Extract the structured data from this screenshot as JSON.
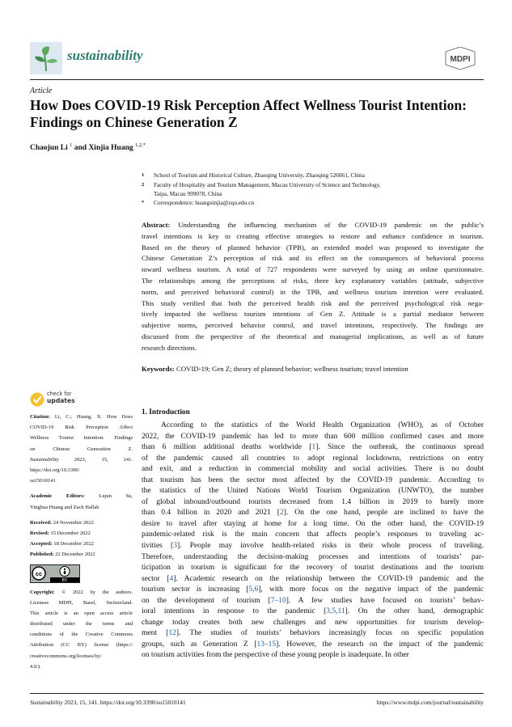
{
  "header": {
    "journal": "sustainability",
    "logo_icon": "sprout-leaf-icon",
    "publisher": "MDPI",
    "publisher_logo_icon": "mdpi-hexagon-logo",
    "brand_color": "#2e7d6f"
  },
  "article_type": "Article",
  "title": "How Does COVID-19 Risk Perception Affect Wellness Tourist Intention: Findings on Chinese Generation Z",
  "authors": [
    {
      "name": "Chaojun Li",
      "sup": "1"
    },
    {
      "sep": " and "
    },
    {
      "name": "Xinjia Huang",
      "sup": "1,2,*"
    }
  ],
  "affiliations": [
    {
      "n": "1",
      "lines": [
        "School of Tourism and Historical Culture, Zhaoqing University, Zhaoqing 526061, China"
      ]
    },
    {
      "n": "2",
      "lines": [
        "Faculty of Hospitality and Tourism Management, Macau University of Science and Technology,",
        "Taipa, Macau 999078, China"
      ]
    },
    {
      "n": "*",
      "lines": [
        "Correspondence: huangxinjia@zqu.edu.cn"
      ]
    }
  ],
  "abstract": {
    "label": "Abstract:",
    "lines": [
      " Understanding the influencing mechanism of the COVID-19 pandemic on the public’s",
      "travel intentions is key to creating effective strategies to restore and enhance confidence in tourism.",
      "Based on the theory of planned behavior (TPB), an extended model was proposed to investigate the",
      "Chinese Generation Z’s perception of risk and its effect on the consequences of behavioral process",
      "toward wellness tourism. A total of 727 respondents were surveyed by using an online questionnaire.",
      "The relationships among the perceptions of risks, three key explanatory variables (attitude, subjective",
      "norm, and perceived behavioral control) in the TPB, and wellness tourism intention were evaluated.",
      "This study verified that both the perceived health risk and the perceived psychological risk nega-",
      "tively impacted the wellness tourism intentions of Gen Z. Attitude is a partial mediator between",
      "subjective norms, perceived behavior control, and travel intentions, respectively. The findings are",
      "discussed from the perspective of the theoretical and managerial implications, as well as of future",
      "research directions."
    ]
  },
  "keywords": {
    "label": "Keywords:",
    "text": " COVID-19; Gen Z; theory of planned behavior; wellness tourism; travel intention"
  },
  "sidebar": {
    "check_updates": {
      "line1": "check for",
      "line2": "updates",
      "icon": "check-badge-icon"
    },
    "citation_label": "Citation:",
    "citation_lines": [
      " Li, C.; Huang, X. How Does",
      "COVID-19 Risk Perception Affect",
      "Wellness Tourist Intention: Findings",
      "on Chinese Generation Z.",
      "Sustainability 2023, 15, 141.",
      "https://doi.org/10.3390/",
      "su15010141"
    ],
    "editors_label": "Academic Editors:",
    "editors_lines": [
      " Lujun Su,",
      "Yinghua Huang and Zach Hallab"
    ],
    "dates": [
      {
        "label": "Received:",
        "value": " 24 November 2022"
      },
      {
        "label": "Revised:",
        "value": " 15 December 2022"
      },
      {
        "label": "Accepted:",
        "value": " 18 December 2022"
      },
      {
        "label": "Published:",
        "value": " 22 December 2022"
      }
    ],
    "license_badge": "CC BY",
    "copyright_label": "Copyright:",
    "copyright_lines": [
      " © 2022 by the authors.",
      "Licensee MDPI, Basel, Switzerland.",
      "This article is an open access article",
      "distributed under the terms and",
      "conditions of the Creative Commons",
      "Attribution (CC BY) license (https://",
      "creativecommons.org/licenses/by/",
      "4.0/)."
    ]
  },
  "introduction": {
    "heading": "1. Introduction",
    "lines": [
      "According to the statistics of the World Health Organization (WHO), as of October",
      "2022, the COVID-19 pandemic has led to more than 600 million confirmed cases and more",
      "than 6 million additional deaths worldwide [1]. Since the outbreak, the continuous spread",
      "of the pandemic caused all countries to adopt regional lockdowns, restrictions on entry",
      "and exit, and a reduction in commercial mobility and social activities. There is no doubt",
      "that tourism has been the sector most affected by the COVID-19 pandemic. According to",
      "the statistics of the United Nations World Tourism Organization (UNWTO), the number",
      "of global inbound/outbound tourists decreased from 1.4 billion in 2019 to barely more",
      "than 0.4 billion in 2020 and 2021 [2]. On the one hand, people are inclined to have the",
      "desire to travel after staying at home for a long time. On the other hand, the COVID-19",
      "pandemic-related risk is the main concern that affects people’s responses to traveling ac-",
      "tivities [3]. People may involve health-related risks in their whole process of traveling.",
      "Therefore, understanding the decision-making processes and intentions of tourists’ par-",
      "ticipation in tourism is significant for the recovery of tourist destinations and the tourism",
      "sector [4]. Academic research on the relationship between the COVID-19 pandemic and the",
      "tourism sector is increasing [5,6], with more focus on the negative impact of the pandemic",
      "on the development of tourism [7–10]. A few studies have focused on tourists’ behav-",
      "ioral intentions in response to the pandemic [3,5,11]. On the other hand, demographic",
      "change today creates both new challenges and new opportunities for tourism develop-",
      "ment [12]. The studies of tourists’ behaviors increasingly focus on specific population",
      "groups, such as Generation Z [13–15]. However, the research on the impact of the pandemic",
      "on tourism activities from the perspective of these young people is inadequate. In other"
    ],
    "link_color": "#1f5fa8"
  },
  "footer": {
    "citation": "Sustainability 2023, 15, 141. https://doi.org/10.3390/su15010141",
    "url": "https://www.mdpi.com/journal/sustainability"
  }
}
